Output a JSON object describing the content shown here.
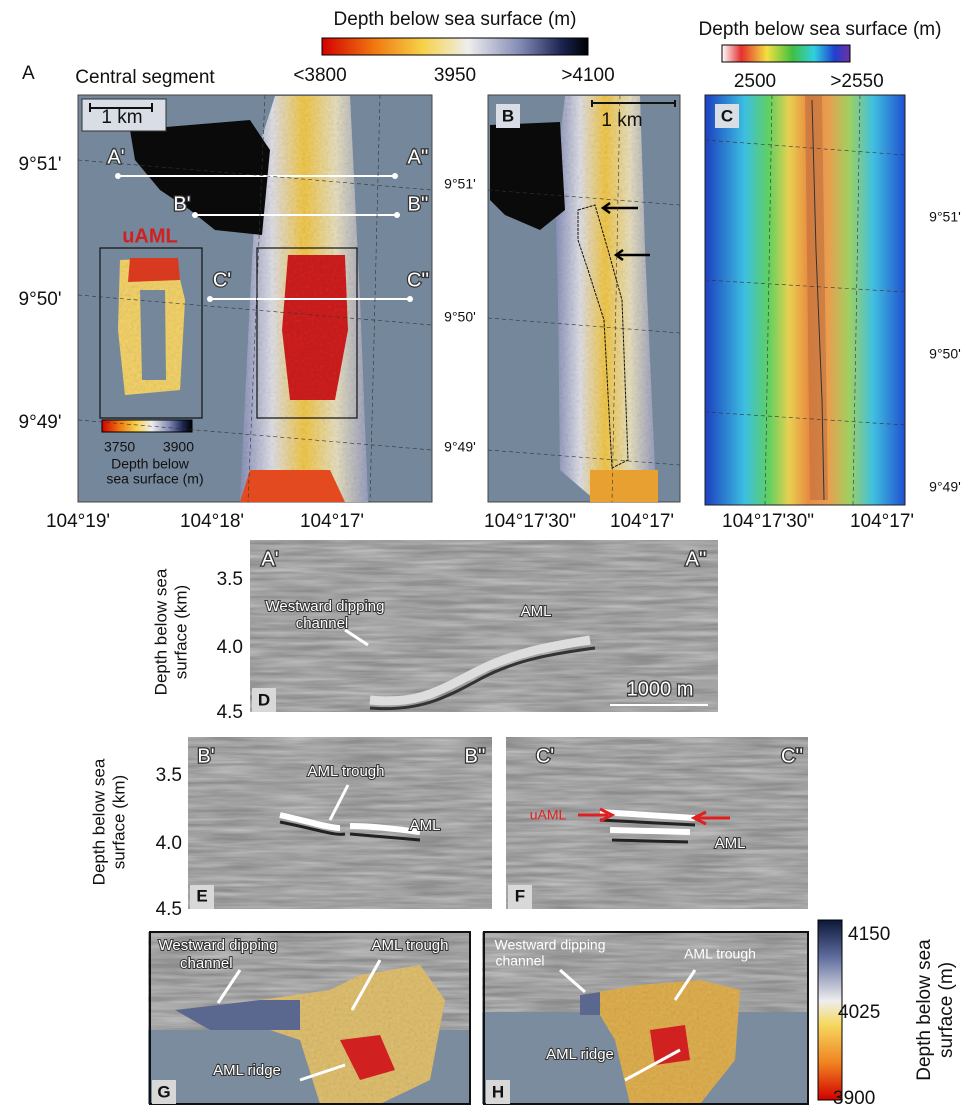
{
  "colorbar_main": {
    "title": "Depth below sea surface (m)",
    "min_label": "<3800",
    "mid_label": "3950",
    "max_label": ">4100"
  },
  "colorbar_c": {
    "title": "Depth below sea surface (m)",
    "min_label": "2500",
    "max_label": ">2550"
  },
  "panel_a": {
    "letter": "A",
    "title": "Central segment",
    "scale": "1 km",
    "profiles": {
      "a_start": "A'",
      "a_end": "A''",
      "b_start": "B'",
      "b_end": "B''",
      "c_start": "C'",
      "c_end": "C''"
    },
    "inset_title": "uAML",
    "inset_scale": {
      "min_label": "3750",
      "max_label": "3900",
      "title_lines": [
        "Depth below",
        "sea surface (m)"
      ]
    },
    "lat_labels": [
      "9°51'",
      "9°50'",
      "9°49'"
    ],
    "lon_labels": [
      "104°19'",
      "104°18'",
      "104°17'"
    ]
  },
  "panel_b": {
    "letter": "B",
    "scale": "1 km",
    "lat_labels": [
      "9°51'",
      "9°50'",
      "9°49'"
    ],
    "lon_labels": [
      "104°17'30\"",
      "104°17'"
    ]
  },
  "panel_c": {
    "letter": "C",
    "lat_labels": [
      "9°51'",
      "9°50'",
      "9°49'"
    ],
    "lon_labels": [
      "104°17'30\"",
      "104°17'"
    ]
  },
  "section_d": {
    "letter": "D",
    "start": "A'",
    "end": "A''",
    "channel_label": [
      "Westward dipping",
      "channel"
    ],
    "aml_label": "AML",
    "scale": "1000 m",
    "axis": {
      "label_lines": [
        "Depth below sea",
        "surface (km)"
      ],
      "ticks": [
        "3.5",
        "4.0",
        "4.5"
      ]
    }
  },
  "section_e": {
    "letter": "E",
    "start": "B'",
    "end": "B''",
    "trough_label": "AML trough",
    "aml_label": "AML",
    "axis": {
      "label_lines": [
        "Depth below sea",
        "surface (km)"
      ],
      "ticks": [
        "3.5",
        "4.0",
        "4.5"
      ]
    }
  },
  "section_f": {
    "letter": "F",
    "start": "C'",
    "end": "C''",
    "uaml_label": "uAML",
    "aml_label": "AML"
  },
  "panel_g": {
    "letter": "G",
    "channel_label": [
      "Westward dipping",
      "channel"
    ],
    "trough_label": "AML trough",
    "ridge_label": "AML ridge"
  },
  "panel_h": {
    "letter": "H",
    "channel_label": [
      "Westward dipping",
      "channel"
    ],
    "trough_label": "AML trough",
    "ridge_label": "AML ridge"
  },
  "colorbar_gh": {
    "max_label": "4150",
    "mid_label": "4025",
    "min_label": "3900",
    "title_lines": [
      "Depth below sea",
      "surface (m)"
    ]
  }
}
